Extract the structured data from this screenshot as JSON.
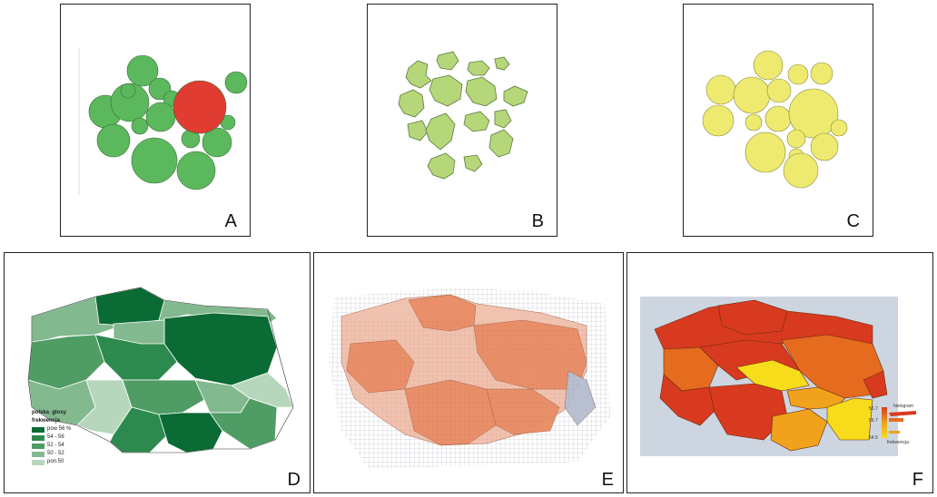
{
  "panels": [
    {
      "id": "A",
      "label": "A",
      "kind": "circles",
      "fill": "#5cb85c",
      "highlight": "#e03c31"
    },
    {
      "id": "B",
      "label": "B",
      "kind": "blobs",
      "fill": "#b5d77a"
    },
    {
      "id": "C",
      "label": "C",
      "kind": "circles",
      "fill": "#eeea70"
    },
    {
      "id": "D",
      "label": "D",
      "kind": "choropleth",
      "palette": [
        "#0b6b34",
        "#2d8a4e",
        "#4f9d64",
        "#82b98e",
        "#b7d7bd"
      ]
    },
    {
      "id": "E",
      "label": "E",
      "kind": "cartogram-grid",
      "fill": "#e9906a"
    },
    {
      "id": "F",
      "label": "F",
      "kind": "choropleth-heat",
      "palette": [
        "#d83a1f",
        "#e56b1f",
        "#f0a21c",
        "#f7dc1c"
      ]
    }
  ],
  "legend_d": {
    "title": "polska_glosy",
    "subtitle": "frekwencja",
    "items": [
      "pow 56 %",
      "54 - 56",
      "52 - 54",
      "50 - 52",
      "pon.50"
    ]
  },
  "legend_f": {
    "top_value": "56.7",
    "mid_value": "56.7",
    "bottom_value": "54.5",
    "top_label": "histogram",
    "bottom_label": "frekwencja"
  }
}
